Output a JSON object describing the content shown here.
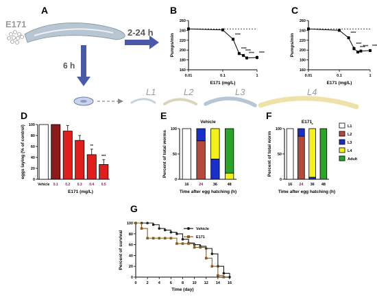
{
  "panels": {
    "A": "A",
    "B": "B",
    "C": "C",
    "D": "D",
    "E": "E",
    "F": "F",
    "G": "G"
  },
  "schematic": {
    "compound": "E171",
    "arrow_right": "2-24 h",
    "arrow_down": "6 h",
    "stages": [
      "L1",
      "L2",
      "L3",
      "L4"
    ]
  },
  "colors": {
    "L1": "#ffffff",
    "L2": "#b34a3c",
    "L3": "#1a2ec8",
    "L4": "#f2f21a",
    "Adult": "#2aa52a",
    "bar_dark": "#8b1a1a",
    "bar_red": "#e01e1e",
    "vehicle_line": "#1a1a1a",
    "e171_line": "#8a5a1e"
  },
  "chart_data": [
    {
      "panel": "B",
      "type": "line",
      "xlabel": "E171 (mg/L)",
      "ylabel": "Pumps/min",
      "xscale": "log",
      "xlim": [
        0.01,
        1
      ],
      "ylim": [
        160,
        260
      ],
      "xticks": [
        "0.01",
        "0.1",
        "1"
      ],
      "yticks": [
        "160",
        "180",
        "200",
        "220",
        "240",
        "260"
      ],
      "baseline": 243,
      "x": [
        0.01,
        0.1,
        0.2,
        0.3,
        0.4,
        0.5,
        1.0
      ],
      "y": [
        243,
        241,
        222,
        193,
        189,
        184,
        185
      ],
      "err": [
        4,
        3,
        3,
        3,
        3,
        3,
        4
      ],
      "significance": [
        "",
        "",
        "****",
        "****",
        "****",
        "****",
        "****"
      ]
    },
    {
      "panel": "C",
      "type": "line",
      "xlabel": "E171 (mg/L)",
      "ylabel": "Pumps/min",
      "xscale": "log",
      "xlim": [
        0.01,
        1
      ],
      "ylim": [
        160,
        260
      ],
      "xticks": [
        "0.01",
        "0.1",
        "1"
      ],
      "yticks": [
        "160",
        "180",
        "200",
        "220",
        "240",
        "260"
      ],
      "baseline": 243,
      "x": [
        0.01,
        0.1,
        0.2,
        0.3,
        0.4,
        0.5,
        1.0
      ],
      "y": [
        243,
        240,
        225,
        203,
        196,
        198,
        199
      ],
      "err": [
        4,
        3,
        3,
        4,
        3,
        3,
        3
      ],
      "significance": [
        "",
        "",
        "****",
        "****",
        "****",
        "****",
        "****"
      ]
    },
    {
      "panel": "D",
      "type": "bar",
      "ylabel": "eggs laying (% of control)",
      "xlabel": "E171 (mg/L)",
      "categories": [
        "Vehicle",
        "0.1",
        "0.2",
        "0.3",
        "0.4",
        "0.5"
      ],
      "values": [
        100,
        100,
        88,
        71,
        45,
        27
      ],
      "err": [
        0,
        0,
        10,
        9,
        10,
        9
      ],
      "significance": [
        "",
        "",
        "",
        "",
        "**",
        "***"
      ],
      "ylim": [
        0,
        100
      ],
      "yticks": [
        "0",
        "20",
        "40",
        "60",
        "80",
        "100"
      ]
    },
    {
      "panel": "E",
      "type": "bar",
      "stacked": true,
      "title": "Vehicle",
      "xlabel": "Time after egg hatching (h)",
      "ylabel": "Percent of total worms",
      "categories": [
        "16",
        "24",
        "36",
        "48"
      ],
      "series": [
        {
          "name": "L1",
          "values": [
            100,
            0,
            0,
            0
          ]
        },
        {
          "name": "L2",
          "values": [
            0,
            76,
            0,
            0
          ]
        },
        {
          "name": "L3",
          "values": [
            0,
            24,
            40,
            0
          ]
        },
        {
          "name": "L4",
          "values": [
            0,
            0,
            60,
            12
          ]
        },
        {
          "name": "Adult",
          "values": [
            0,
            0,
            0,
            88
          ]
        }
      ],
      "ylim": [
        0,
        100
      ],
      "yticks": [
        "0",
        "50",
        "100"
      ]
    },
    {
      "panel": "F",
      "type": "bar",
      "stacked": true,
      "title": "E171",
      "xlabel": "Time after egg hatching (h)",
      "ylabel": "Percent of total worm",
      "categories": [
        "16",
        "24",
        "36",
        "48"
      ],
      "series": [
        {
          "name": "L1",
          "values": [
            100,
            0,
            0,
            0
          ]
        },
        {
          "name": "L2",
          "values": [
            0,
            85,
            0,
            0
          ]
        },
        {
          "name": "L3",
          "values": [
            0,
            15,
            4,
            0
          ]
        },
        {
          "name": "L4",
          "values": [
            0,
            0,
            96,
            0
          ]
        },
        {
          "name": "Adult",
          "values": [
            0,
            0,
            0,
            100
          ]
        }
      ],
      "annotation": {
        "category": "36",
        "text": "*"
      },
      "ylim": [
        0,
        100
      ],
      "yticks": [
        "0",
        "50",
        "100"
      ],
      "legend": [
        "L1",
        "L2",
        "L3",
        "L4",
        "Adult"
      ]
    },
    {
      "panel": "G",
      "type": "line",
      "step": true,
      "xlabel": "Time (day)",
      "ylabel": "Percent of survival",
      "xlim": [
        0,
        16
      ],
      "ylim": [
        0,
        100
      ],
      "xticks": [
        "0",
        "2",
        "4",
        "6",
        "8",
        "10",
        "12",
        "14",
        "16"
      ],
      "yticks": [
        "0",
        "20",
        "40",
        "60",
        "80",
        "100"
      ],
      "series": [
        {
          "name": "Vehicle",
          "x": [
            0,
            1,
            2,
            3,
            4,
            5,
            6,
            7,
            8,
            9,
            10,
            11,
            12,
            13,
            14,
            15,
            16
          ],
          "y": [
            100,
            100,
            100,
            97,
            90,
            87,
            83,
            80,
            70,
            63,
            60,
            57,
            53,
            43,
            20,
            7,
            0
          ]
        },
        {
          "name": "E171",
          "x": [
            0,
            1,
            2,
            3,
            4,
            5,
            6,
            7,
            8,
            9,
            10,
            11,
            12,
            13,
            14,
            15
          ],
          "y": [
            100,
            90,
            72,
            72,
            72,
            72,
            72,
            62,
            62,
            62,
            55,
            55,
            35,
            20,
            3,
            0
          ]
        }
      ]
    }
  ]
}
